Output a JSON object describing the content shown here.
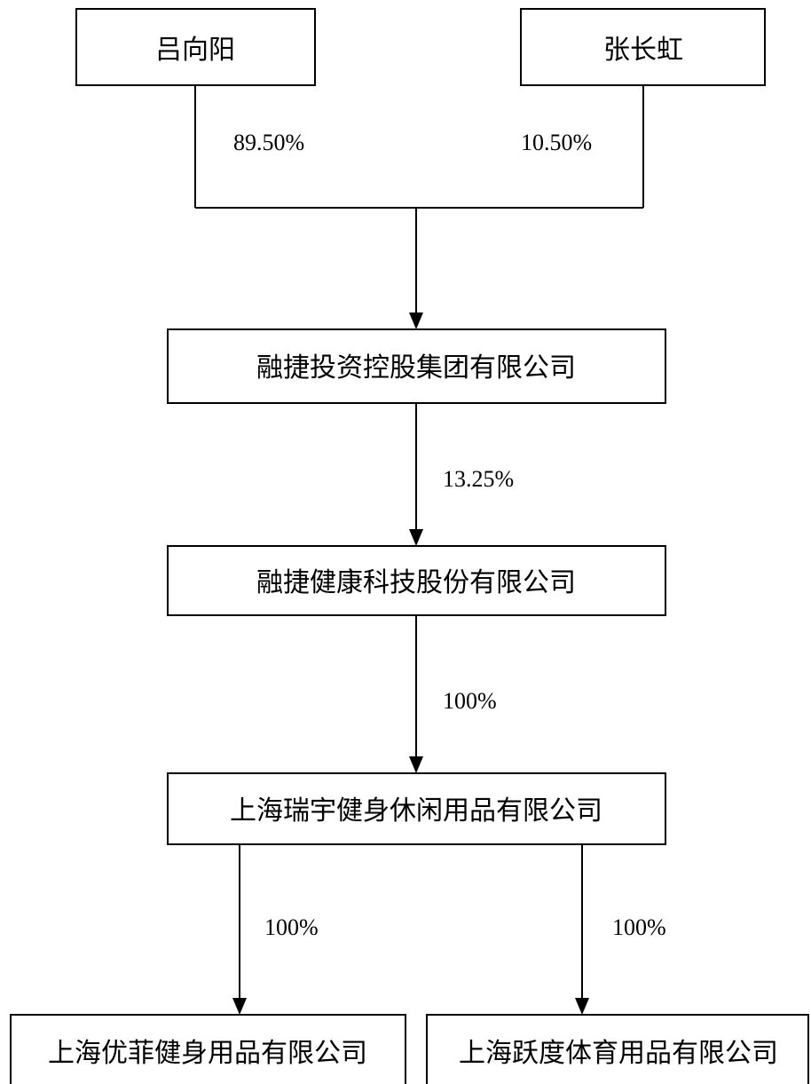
{
  "nodes": {
    "lv_xiangyang": "吕向阳",
    "zhang_changhong": "张长虹",
    "rongjie_investment": "融捷投资控股集团有限公司",
    "rongjie_health": "融捷健康科技股份有限公司",
    "shanghai_ruiyu": "上海瑞宇健身休闲用品有限公司",
    "shanghai_youfei": "上海优菲健身用品有限公司",
    "shanghai_yuedu": "上海跃度体育用品有限公司"
  },
  "edges": {
    "lv_to_investment": "89.50%",
    "zhang_to_investment": "10.50%",
    "investment_to_health": "13.25%",
    "health_to_ruiyu": "100%",
    "ruiyu_to_youfei": "100%",
    "ruiyu_to_yuedu": "100%"
  },
  "colors": {
    "stroke": "#000000",
    "background": "#ffffff"
  }
}
